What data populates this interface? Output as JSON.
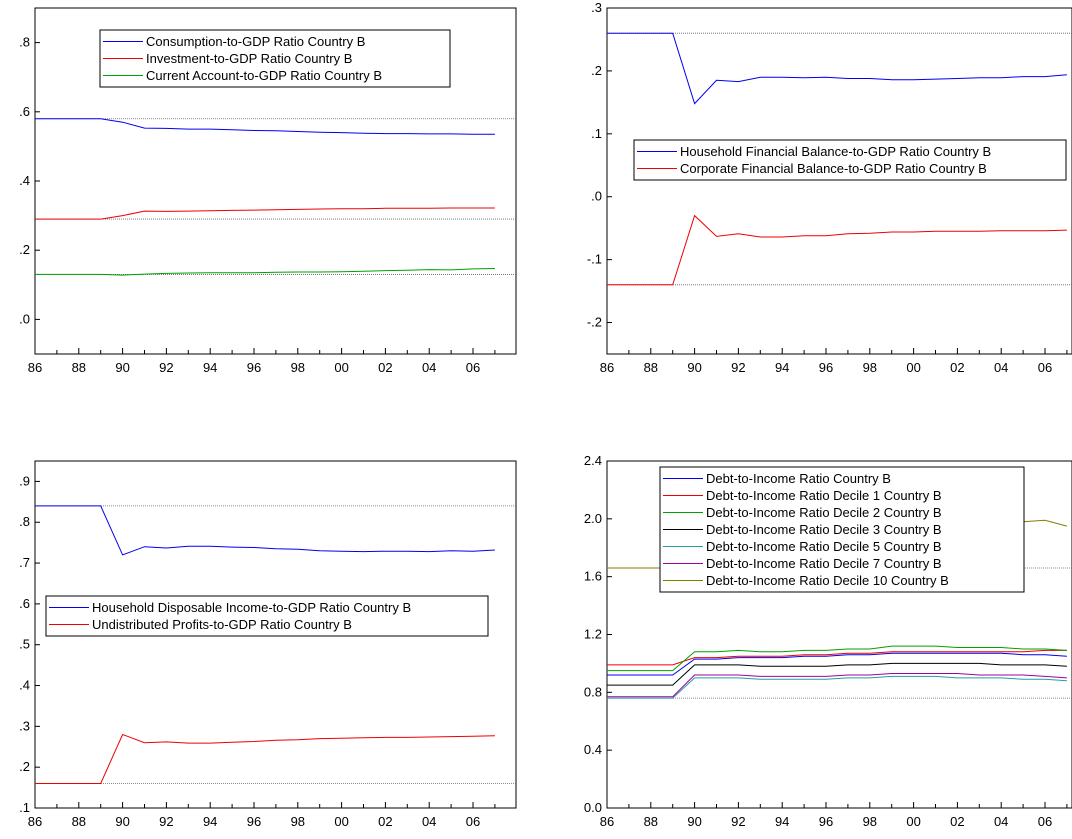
{
  "chart_data": [
    {
      "type": "line",
      "x": [
        "86",
        "87",
        "88",
        "89",
        "90",
        "91",
        "92",
        "93",
        "94",
        "95",
        "96",
        "97",
        "98",
        "99",
        "00",
        "01",
        "02",
        "03",
        "04",
        "05",
        "06",
        "07"
      ],
      "xticks": [
        "86",
        "88",
        "90",
        "92",
        "94",
        "96",
        "98",
        "00",
        "02",
        "04",
        "06"
      ],
      "ylim": [
        -0.1,
        0.9
      ],
      "yticks": [
        0.0,
        0.2,
        0.4,
        0.6,
        0.8
      ],
      "ytick_labels": [
        ".0",
        ".2",
        ".4",
        ".6",
        ".8"
      ],
      "baselines": [
        0.58,
        0.29,
        0.13
      ],
      "legend_position": "top-center",
      "series": [
        {
          "name": "Consumption-to-GDP Ratio Country B",
          "color": "#0000ee",
          "values": [
            0.58,
            0.58,
            0.58,
            0.58,
            0.57,
            0.553,
            0.552,
            0.55,
            0.55,
            0.548,
            0.546,
            0.545,
            0.543,
            0.541,
            0.54,
            0.538,
            0.537,
            0.537,
            0.536,
            0.536,
            0.535,
            0.535
          ]
        },
        {
          "name": "Investment-to-GDP Ratio Country B",
          "color": "#ee0000",
          "values": [
            0.29,
            0.29,
            0.29,
            0.29,
            0.3,
            0.313,
            0.312,
            0.313,
            0.314,
            0.315,
            0.316,
            0.317,
            0.318,
            0.319,
            0.32,
            0.32,
            0.321,
            0.321,
            0.321,
            0.322,
            0.322,
            0.322
          ]
        },
        {
          "name": "Current Account-to-GDP Ratio Country B",
          "color": "#00a000",
          "values": [
            0.13,
            0.13,
            0.13,
            0.13,
            0.128,
            0.131,
            0.133,
            0.134,
            0.135,
            0.135,
            0.135,
            0.136,
            0.137,
            0.137,
            0.138,
            0.139,
            0.141,
            0.142,
            0.144,
            0.143,
            0.146,
            0.147
          ]
        }
      ]
    },
    {
      "type": "line",
      "x": [
        "86",
        "87",
        "88",
        "89",
        "90",
        "91",
        "92",
        "93",
        "94",
        "95",
        "96",
        "97",
        "98",
        "99",
        "00",
        "01",
        "02",
        "03",
        "04",
        "05",
        "06",
        "07"
      ],
      "xticks": [
        "86",
        "88",
        "90",
        "92",
        "94",
        "96",
        "98",
        "00",
        "02",
        "04",
        "06"
      ],
      "ylim": [
        -0.25,
        0.3
      ],
      "yticks": [
        -0.2,
        -0.1,
        0.0,
        0.1,
        0.2,
        0.3
      ],
      "ytick_labels": [
        "-.2",
        "-.1",
        ".0",
        ".1",
        ".2",
        ".3"
      ],
      "baselines": [
        0.26,
        -0.14
      ],
      "legend_position": "middle-right",
      "series": [
        {
          "name": "Household Financial Balance-to-GDP Ratio Country B",
          "color": "#0000ee",
          "values": [
            0.26,
            0.26,
            0.26,
            0.26,
            0.148,
            0.185,
            0.183,
            0.19,
            0.19,
            0.189,
            0.19,
            0.188,
            0.188,
            0.186,
            0.186,
            0.187,
            0.188,
            0.189,
            0.189,
            0.191,
            0.191,
            0.194
          ]
        },
        {
          "name": "Corporate Financial Balance-to-GDP Ratio Country B",
          "color": "#ee0000",
          "values": [
            -0.14,
            -0.14,
            -0.14,
            -0.14,
            -0.03,
            -0.063,
            -0.059,
            -0.064,
            -0.064,
            -0.062,
            -0.062,
            -0.059,
            -0.058,
            -0.056,
            -0.056,
            -0.055,
            -0.055,
            -0.055,
            -0.054,
            -0.054,
            -0.054,
            -0.053
          ]
        }
      ]
    },
    {
      "type": "line",
      "x": [
        "86",
        "87",
        "88",
        "89",
        "90",
        "91",
        "92",
        "93",
        "94",
        "95",
        "96",
        "97",
        "98",
        "99",
        "00",
        "01",
        "02",
        "03",
        "04",
        "05",
        "06",
        "07"
      ],
      "xticks": [
        "86",
        "88",
        "90",
        "92",
        "94",
        "96",
        "98",
        "00",
        "02",
        "04",
        "06"
      ],
      "ylim": [
        0.1,
        0.95
      ],
      "yticks": [
        0.1,
        0.2,
        0.3,
        0.4,
        0.5,
        0.6,
        0.7,
        0.8,
        0.9
      ],
      "ytick_labels": [
        ".1",
        ".2",
        ".3",
        ".4",
        ".5",
        ".6",
        ".7",
        ".8",
        ".9"
      ],
      "baselines": [
        0.84,
        0.16
      ],
      "legend_position": "middle-left",
      "series": [
        {
          "name": "Household Disposable Income-to-GDP Ratio Country B",
          "color": "#0000ee",
          "values": [
            0.84,
            0.84,
            0.84,
            0.84,
            0.72,
            0.74,
            0.737,
            0.741,
            0.741,
            0.739,
            0.738,
            0.735,
            0.734,
            0.73,
            0.729,
            0.728,
            0.729,
            0.729,
            0.728,
            0.73,
            0.729,
            0.732
          ]
        },
        {
          "name": "Undistributed Profits-to-GDP Ratio Country B",
          "color": "#ee0000",
          "values": [
            0.16,
            0.16,
            0.16,
            0.16,
            0.28,
            0.26,
            0.262,
            0.259,
            0.259,
            0.261,
            0.263,
            0.266,
            0.267,
            0.27,
            0.271,
            0.272,
            0.273,
            0.273,
            0.274,
            0.275,
            0.276,
            0.277
          ]
        }
      ]
    },
    {
      "type": "line",
      "x": [
        "86",
        "87",
        "88",
        "89",
        "90",
        "91",
        "92",
        "93",
        "94",
        "95",
        "96",
        "97",
        "98",
        "99",
        "00",
        "01",
        "02",
        "03",
        "04",
        "05",
        "06",
        "07"
      ],
      "xticks": [
        "86",
        "88",
        "90",
        "92",
        "94",
        "96",
        "98",
        "00",
        "02",
        "04",
        "06"
      ],
      "ylim": [
        0.0,
        2.4
      ],
      "yticks": [
        0.0,
        0.4,
        0.8,
        1.2,
        1.6,
        2.0,
        2.4
      ],
      "ytick_labels": [
        "0.0",
        "0.4",
        "0.8",
        "1.2",
        "1.6",
        "2.0",
        "2.4"
      ],
      "baselines": [
        1.66,
        0.76
      ],
      "legend_position": "top-left",
      "series": [
        {
          "name": "Debt-to-Income Ratio Country B",
          "color": "#0000ee",
          "values": [
            0.92,
            0.92,
            0.92,
            0.92,
            1.03,
            1.03,
            1.04,
            1.04,
            1.04,
            1.05,
            1.05,
            1.06,
            1.06,
            1.07,
            1.07,
            1.07,
            1.07,
            1.07,
            1.07,
            1.06,
            1.06,
            1.05
          ]
        },
        {
          "name": "Debt-to-Income Ratio Decile 1 Country B",
          "color": "#ee0000",
          "values": [
            0.99,
            0.99,
            0.99,
            0.99,
            1.04,
            1.04,
            1.05,
            1.05,
            1.05,
            1.06,
            1.06,
            1.07,
            1.07,
            1.08,
            1.08,
            1.08,
            1.08,
            1.08,
            1.08,
            1.08,
            1.09,
            1.09
          ]
        },
        {
          "name": "Debt-to-Income Ratio Decile 2 Country B",
          "color": "#00a000",
          "values": [
            0.95,
            0.95,
            0.95,
            0.95,
            1.08,
            1.08,
            1.09,
            1.08,
            1.08,
            1.09,
            1.09,
            1.1,
            1.1,
            1.12,
            1.12,
            1.12,
            1.11,
            1.11,
            1.11,
            1.1,
            1.1,
            1.09
          ]
        },
        {
          "name": "Debt-to-Income Ratio Decile 3 Country B",
          "color": "#000000",
          "values": [
            0.85,
            0.85,
            0.85,
            0.85,
            0.99,
            0.99,
            0.99,
            0.98,
            0.98,
            0.98,
            0.98,
            0.99,
            0.99,
            1.0,
            1.0,
            1.0,
            1.0,
            1.0,
            0.99,
            0.99,
            0.99,
            0.98
          ]
        },
        {
          "name": "Debt-to-Income Ratio Decile 5 Country B",
          "color": "#20a0a0",
          "values": [
            0.76,
            0.76,
            0.76,
            0.76,
            0.9,
            0.9,
            0.9,
            0.89,
            0.89,
            0.89,
            0.89,
            0.9,
            0.9,
            0.91,
            0.91,
            0.91,
            0.9,
            0.9,
            0.9,
            0.89,
            0.89,
            0.88
          ]
        },
        {
          "name": "Debt-to-Income Ratio Decile 7 Country B",
          "color": "#a000a0",
          "values": [
            0.77,
            0.77,
            0.77,
            0.77,
            0.92,
            0.92,
            0.92,
            0.91,
            0.91,
            0.91,
            0.91,
            0.92,
            0.92,
            0.93,
            0.93,
            0.93,
            0.93,
            0.92,
            0.92,
            0.92,
            0.91,
            0.9
          ]
        },
        {
          "name": "Debt-to-Income Ratio Decile 10 Country B",
          "color": "#808000",
          "values": [
            1.66,
            1.66,
            1.66,
            1.66,
            1.95,
            1.95,
            1.96,
            1.96,
            1.97,
            1.97,
            1.97,
            1.98,
            1.98,
            1.99,
            2.0,
            2.0,
            1.99,
            1.99,
            1.99,
            1.98,
            1.99,
            1.95
          ]
        }
      ]
    }
  ]
}
